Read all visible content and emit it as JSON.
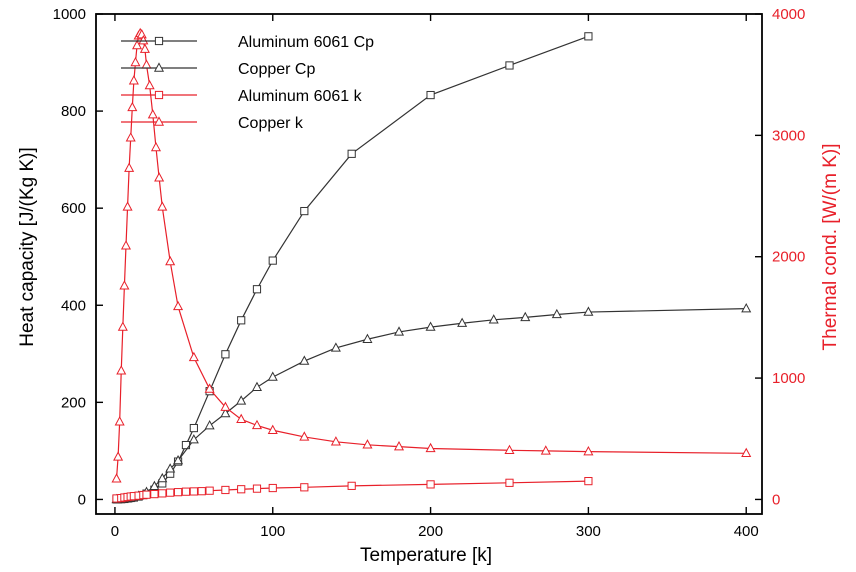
{
  "chart_data": {
    "type": "line",
    "title": "",
    "xlabel": "Temperature [k]",
    "ylabel_left": "Heat capacity [J/(Kg K)]",
    "ylabel_right": "Thermal cond. [W/(m K)]",
    "xlim": [
      -12,
      410
    ],
    "ylim_left": [
      -30,
      1000
    ],
    "ylim_right": [
      -120,
      4000
    ],
    "xticks": [
      0,
      100,
      200,
      300,
      400
    ],
    "yticks_left": [
      0,
      200,
      400,
      600,
      800,
      1000
    ],
    "yticks_right": [
      0,
      1000,
      2000,
      3000,
      4000
    ],
    "grid": false,
    "legend_position": "top-left",
    "colors": {
      "black": "#333333",
      "red": "#e8202a",
      "axis": "#000000"
    },
    "series": [
      {
        "name": "Aluminum 6061 Cp",
        "axis": "left",
        "color": "#333333",
        "marker": "square",
        "x": [
          1,
          2,
          4,
          6,
          8,
          10,
          12,
          15,
          18,
          20,
          25,
          30,
          35,
          40,
          45,
          50,
          60,
          70,
          80,
          90,
          100,
          120,
          150,
          200,
          250,
          300
        ],
        "y": [
          0.1,
          0.2,
          0.5,
          1,
          2,
          3,
          4,
          6,
          9,
          12,
          20,
          33,
          53,
          78,
          112,
          147,
          223,
          299,
          369,
          433,
          492,
          594,
          712,
          833,
          894,
          954
        ]
      },
      {
        "name": "Copper Cp",
        "axis": "left",
        "color": "#333333",
        "marker": "triangle",
        "x": [
          1,
          4,
          8,
          10,
          15,
          20,
          25,
          30,
          35,
          40,
          50,
          60,
          70,
          80,
          90,
          100,
          120,
          140,
          160,
          180,
          200,
          220,
          240,
          260,
          280,
          300,
          400
        ],
        "y": [
          0,
          0.2,
          1.5,
          3,
          7,
          15,
          27,
          43,
          63,
          80,
          123,
          152,
          177,
          203,
          231,
          252,
          285,
          312,
          330,
          345,
          355,
          363,
          370,
          375,
          381,
          386,
          393
        ]
      },
      {
        "name": "Aluminum 6061 k",
        "axis": "right",
        "color": "#e8202a",
        "marker": "square",
        "x": [
          1,
          4,
          6,
          8,
          10,
          12,
          15,
          18,
          20,
          25,
          30,
          35,
          40,
          45,
          50,
          55,
          60,
          70,
          80,
          90,
          100,
          120,
          150,
          200,
          250,
          300
        ],
        "y": [
          8,
          11,
          16,
          20,
          24,
          27,
          31,
          36,
          39,
          44,
          50,
          56,
          60,
          64,
          66,
          68,
          72,
          78,
          84,
          89,
          94,
          100,
          112,
          124,
          137,
          151
        ]
      },
      {
        "name": "Copper k",
        "axis": "right",
        "color": "#e8202a",
        "marker": "triangle",
        "x": [
          1,
          2,
          3,
          4,
          5,
          6,
          7,
          8,
          9,
          10,
          11,
          12,
          13,
          14,
          15,
          16,
          17,
          18,
          19,
          20,
          22,
          24,
          26,
          28,
          30,
          35,
          40,
          50,
          60,
          70,
          80,
          90,
          100,
          120,
          140,
          160,
          180,
          200,
          250,
          273,
          300,
          400
        ],
        "y": [
          170,
          350,
          640,
          1060,
          1420,
          1760,
          2090,
          2410,
          2730,
          2980,
          3230,
          3450,
          3600,
          3740,
          3820,
          3840,
          3830,
          3780,
          3710,
          3580,
          3410,
          3170,
          2900,
          2650,
          2410,
          1960,
          1590,
          1170,
          910,
          760,
          660,
          610,
          570,
          515,
          475,
          450,
          435,
          420,
          405,
          400,
          394,
          380
        ]
      }
    ]
  }
}
